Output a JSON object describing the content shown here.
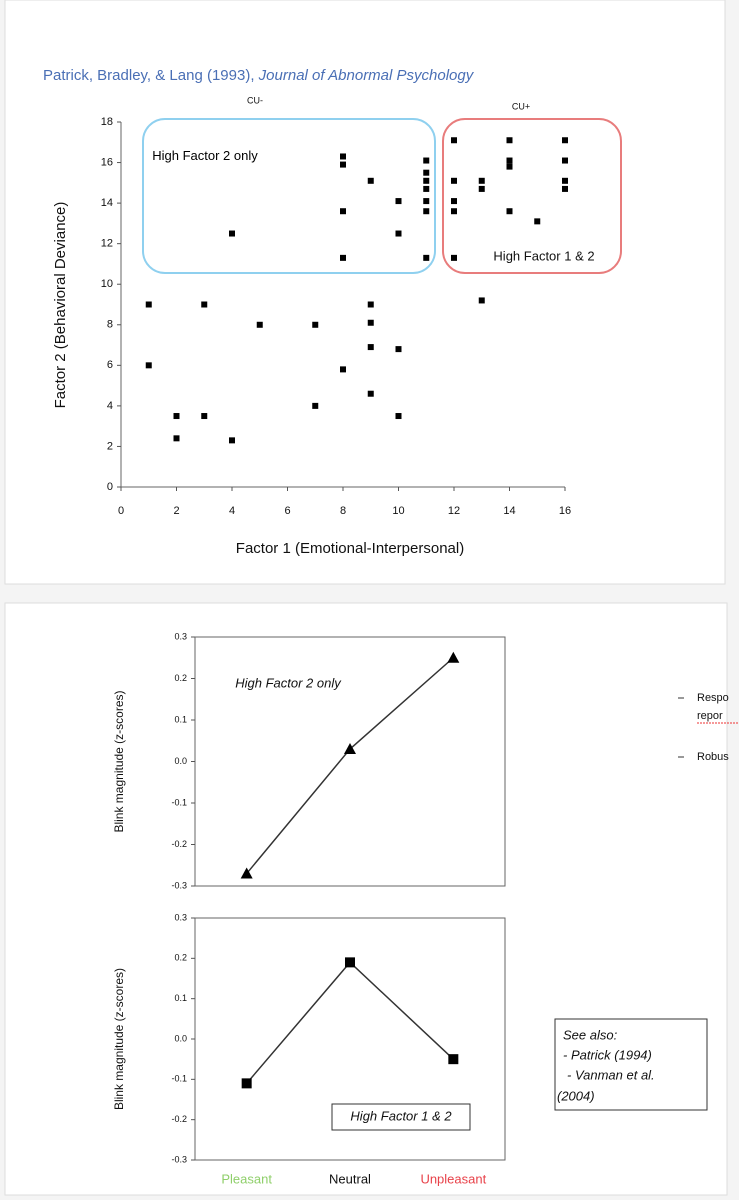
{
  "citation": {
    "authors": "Patrick, Bradley, & Lang (1993), ",
    "journal": "Journal of Abnormal Psychology"
  },
  "side_notes": [
    "Respo",
    "repor",
    "Robus"
  ],
  "see_also": [
    "See also:",
    "- Patrick (1994)",
    "- Vanman et al.",
    "(2004)"
  ],
  "chart_data": [
    {
      "type": "scatter",
      "x_label": "Factor 1 (Emotional-Interpersonal)",
      "y_label": "Factor 2 (Behavioral Deviance)",
      "annotations": [
        "CU-",
        "CU+",
        "High Factor 2 only",
        "High Factor 1 & 2"
      ],
      "color": "#000000",
      "x": [
        1,
        1,
        2,
        2,
        3,
        3,
        4,
        4,
        5,
        7,
        7,
        8,
        8,
        8,
        8,
        8,
        9,
        9,
        9,
        9,
        9,
        10,
        10,
        10,
        10,
        11,
        11,
        11,
        11,
        11,
        11,
        11,
        12,
        12,
        12,
        12,
        12,
        13,
        13,
        13,
        14,
        14,
        14,
        14,
        15,
        16,
        16,
        16,
        16
      ],
      "values": [
        9,
        6,
        3.5,
        2.4,
        9,
        3.5,
        12.5,
        2.3,
        8,
        8,
        4,
        16.3,
        15.9,
        13.6,
        11.3,
        5.8,
        15.1,
        9,
        8.1,
        6.9,
        4.6,
        14.1,
        12.5,
        6.8,
        3.5,
        16.1,
        15.5,
        15.1,
        14.7,
        14.1,
        13.6,
        11.3,
        17.1,
        15.1,
        14.1,
        13.6,
        11.3,
        15.1,
        14.7,
        9.2,
        17.1,
        16.1,
        15.8,
        13.6,
        13.1,
        17.1,
        16.1,
        15.1,
        14.7
      ],
      "xlim": [
        0,
        16
      ],
      "xticks": [
        0,
        2,
        4,
        6,
        8,
        10,
        12,
        14,
        16
      ],
      "ylim": [
        0,
        18
      ],
      "yticks": [
        0,
        2,
        4,
        6,
        8,
        10,
        12,
        14,
        16,
        18
      ]
    },
    {
      "type": "line",
      "y_label": "Blink magnitude (z-scores)",
      "annotations": [
        "High Factor 2 only"
      ],
      "categories": [
        null,
        null,
        null
      ],
      "marker": "triangle",
      "color": "#333333",
      "values": [
        -0.27,
        0.03,
        0.25
      ],
      "ylim": [
        -0.3,
        0.3
      ],
      "yticks": [
        0.3,
        0.2,
        0.1,
        {
          "value": 0,
          "label": "0.0"
        },
        -0.1,
        -0.2,
        -0.3
      ]
    },
    {
      "type": "line",
      "y_label": "Blink magnitude (z-scores)",
      "annotations": [
        "High Factor 1 & 2"
      ],
      "categories": [
        "Pleasant",
        "Neutral",
        "Unpleasant"
      ],
      "category_colors": [
        "#8fcf6a",
        "#111111",
        "#e8424a"
      ],
      "marker": "square",
      "color": "#333333",
      "values": [
        -0.11,
        0.19,
        -0.05
      ],
      "ylim": [
        -0.3,
        0.3
      ],
      "yticks": [
        0.3,
        0.2,
        0.1,
        {
          "value": 0,
          "label": "0.0"
        },
        -0.1,
        -0.2,
        -0.3
      ]
    }
  ]
}
